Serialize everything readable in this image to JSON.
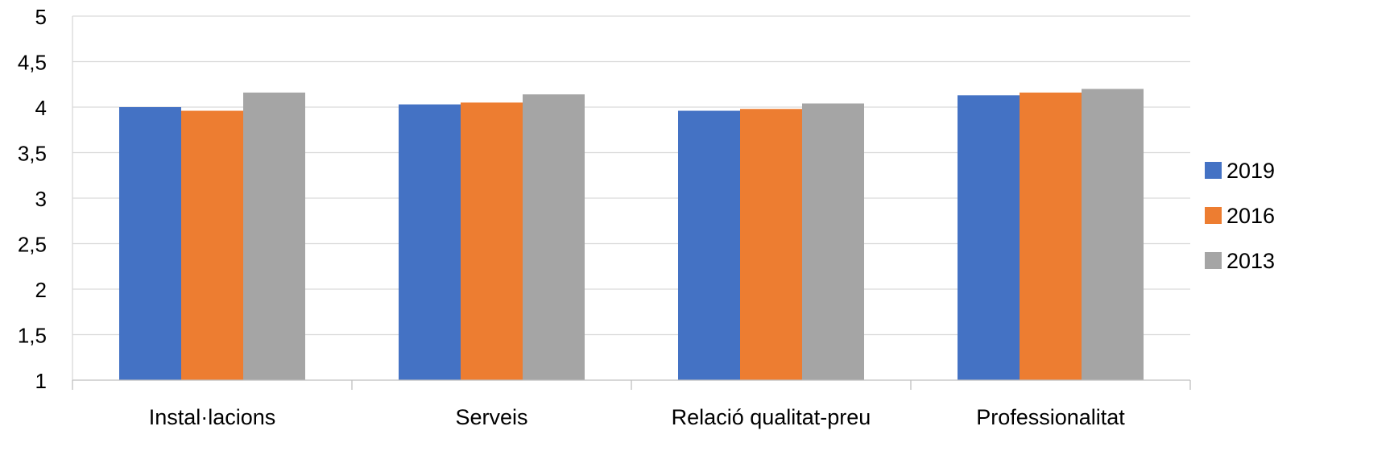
{
  "chart_data": {
    "type": "bar",
    "title": "",
    "xlabel": "",
    "ylabel": "",
    "categories": [
      "Instal·lacions",
      "Serveis",
      "Relació qualitat-preu",
      "Professionalitat"
    ],
    "series": [
      {
        "name": "2019",
        "values": [
          4.0,
          4.03,
          3.96,
          4.13
        ],
        "color": "#4472C4"
      },
      {
        "name": "2016",
        "values": [
          3.96,
          4.05,
          3.98,
          4.16
        ],
        "color": "#ED7D31"
      },
      {
        "name": "2013",
        "values": [
          4.16,
          4.14,
          4.04,
          4.2
        ],
        "color": "#A5A5A5"
      }
    ],
    "ylim": [
      1,
      5
    ],
    "y_ticks": [
      1,
      1.5,
      2,
      2.5,
      3,
      3.5,
      4,
      4.5,
      5
    ],
    "y_tick_labels": [
      "1",
      "1,5",
      "2",
      "2,5",
      "3",
      "3,5",
      "4",
      "4,5",
      "5"
    ],
    "grid": true,
    "legend_position": "right"
  }
}
